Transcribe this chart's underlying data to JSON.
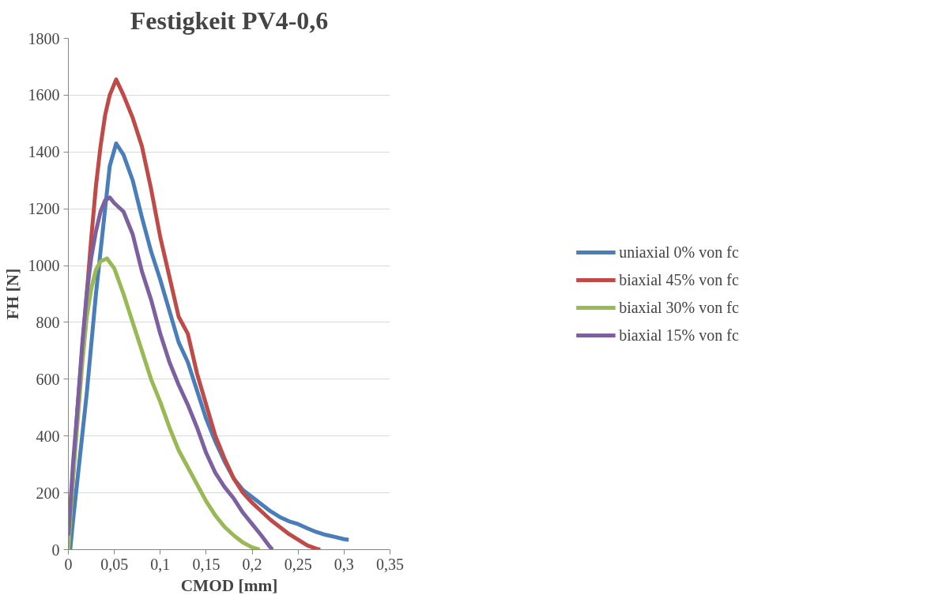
{
  "chart_data": {
    "type": "line",
    "title": "Festigkeit PV4-0,6",
    "xlabel": "CMOD [mm]",
    "ylabel": "FH [N]",
    "xlim": [
      0,
      0.35
    ],
    "ylim": [
      0,
      1800
    ],
    "xticks": [
      0,
      {
        "value": 0.05,
        "label": "0,05"
      },
      {
        "value": 0.1,
        "label": "0,1"
      },
      {
        "value": 0.15,
        "label": "0,15"
      },
      {
        "value": 0.2,
        "label": "0,2"
      },
      {
        "value": 0.25,
        "label": "0,25"
      },
      {
        "value": 0.3,
        "label": "0,3"
      },
      {
        "value": 0.35,
        "label": "0,35"
      }
    ],
    "yticks": [
      0,
      200,
      400,
      600,
      800,
      1000,
      1200,
      1400,
      1600,
      1800
    ],
    "grid": "y",
    "legend": "right",
    "marker": "none",
    "line_style": "solid",
    "series": [
      {
        "name": "uniaxial 0% von fc",
        "color": "#4a7ebb",
        "x": [
          0.002,
          0.005,
          0.01,
          0.02,
          0.03,
          0.04,
          0.045,
          0.052,
          0.06,
          0.07,
          0.08,
          0.09,
          0.1,
          0.11,
          0.12,
          0.13,
          0.14,
          0.15,
          0.16,
          0.17,
          0.18,
          0.19,
          0.2,
          0.21,
          0.22,
          0.23,
          0.24,
          0.25,
          0.26,
          0.27,
          0.28,
          0.29,
          0.3,
          0.305
        ],
        "values": [
          0,
          100,
          250,
          550,
          900,
          1200,
          1350,
          1430,
          1390,
          1300,
          1170,
          1050,
          950,
          840,
          730,
          660,
          560,
          460,
          380,
          310,
          250,
          210,
          185,
          160,
          135,
          115,
          100,
          90,
          75,
          62,
          52,
          45,
          37,
          35
        ]
      },
      {
        "name": "biaxial 45% von fc",
        "color": "#be4b48",
        "x": [
          0,
          0.005,
          0.01,
          0.015,
          0.02,
          0.025,
          0.03,
          0.035,
          0.04,
          0.045,
          0.052,
          0.06,
          0.07,
          0.08,
          0.09,
          0.1,
          0.11,
          0.12,
          0.13,
          0.14,
          0.15,
          0.16,
          0.17,
          0.18,
          0.19,
          0.2,
          0.21,
          0.22,
          0.23,
          0.24,
          0.25,
          0.26,
          0.27,
          0.274
        ],
        "values": [
          50,
          250,
          500,
          700,
          900,
          1100,
          1280,
          1420,
          1530,
          1600,
          1655,
          1600,
          1520,
          1420,
          1270,
          1100,
          960,
          820,
          760,
          620,
          510,
          400,
          320,
          250,
          200,
          165,
          135,
          105,
          80,
          55,
          35,
          15,
          3,
          0
        ]
      },
      {
        "name": "biaxial 30% von fc",
        "color": "#98b954",
        "x": [
          0,
          0.005,
          0.01,
          0.015,
          0.02,
          0.025,
          0.03,
          0.035,
          0.042,
          0.05,
          0.06,
          0.07,
          0.08,
          0.09,
          0.1,
          0.11,
          0.12,
          0.13,
          0.14,
          0.15,
          0.16,
          0.17,
          0.18,
          0.19,
          0.2,
          0.208
        ],
        "values": [
          0,
          250,
          450,
          650,
          820,
          920,
          985,
          1015,
          1025,
          990,
          900,
          800,
          700,
          600,
          520,
          430,
          350,
          290,
          230,
          170,
          120,
          80,
          50,
          25,
          8,
          0
        ]
      },
      {
        "name": "biaxial 15% von fc",
        "color": "#7d60a0",
        "x": [
          0,
          0.005,
          0.01,
          0.015,
          0.02,
          0.025,
          0.03,
          0.035,
          0.04,
          0.045,
          0.05,
          0.06,
          0.07,
          0.08,
          0.09,
          0.1,
          0.11,
          0.12,
          0.13,
          0.14,
          0.15,
          0.16,
          0.17,
          0.18,
          0.19,
          0.2,
          0.21,
          0.218,
          0.222
        ],
        "values": [
          50,
          300,
          500,
          720,
          900,
          1030,
          1120,
          1190,
          1230,
          1240,
          1220,
          1190,
          1110,
          980,
          880,
          760,
          660,
          580,
          510,
          430,
          340,
          270,
          220,
          180,
          130,
          90,
          50,
          15,
          0
        ]
      }
    ]
  }
}
